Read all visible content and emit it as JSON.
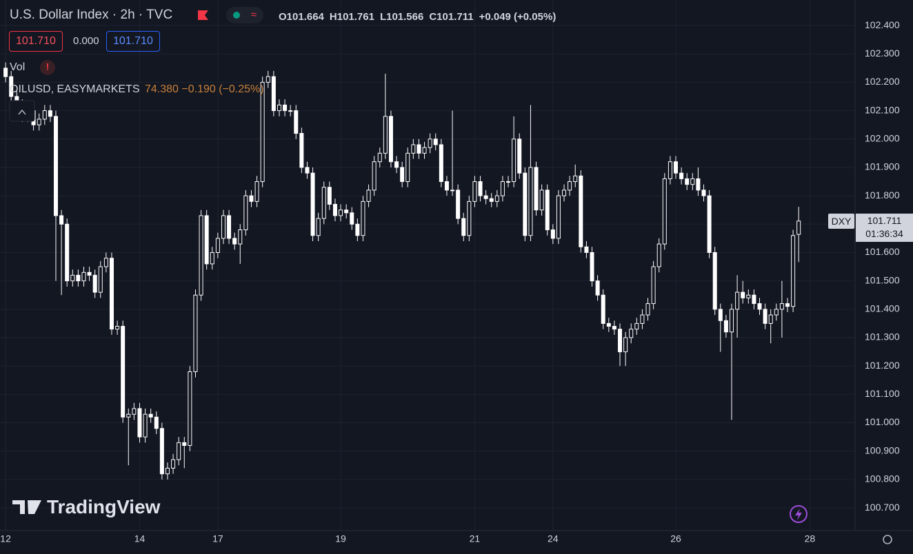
{
  "chart_data": {
    "type": "candlestick",
    "title": "U.S. Dollar Index · 2h · TVC",
    "ohlc_texts": [
      "O101.664",
      "H101.761",
      "L101.566",
      "C101.711",
      "+0.049 (+0.05%)"
    ],
    "boxes": [
      "101.710",
      "0.000",
      "101.710"
    ],
    "volume_label": "Vol",
    "overlay_symbol": "OILUSD, EASYMARKETS",
    "overlay_values": "74.380  −0.190 (−0.25%)",
    "price_tag": "DXY",
    "last_price": "101.711",
    "countdown": "01:36:34",
    "watermark": "TradingView",
    "color": "#ffffff",
    "grid": true,
    "ylim": [
      100.62,
      102.49
    ],
    "yticks": [
      {
        "value": 100.7,
        "label": "100.700"
      },
      {
        "value": 100.8,
        "label": "100.800"
      },
      {
        "value": 100.9,
        "label": "100.900"
      },
      {
        "value": 101.0,
        "label": "101.000"
      },
      {
        "value": 101.1,
        "label": "101.100"
      },
      {
        "value": 101.2,
        "label": "101.200"
      },
      {
        "value": 101.3,
        "label": "101.300"
      },
      {
        "value": 101.4,
        "label": "101.400"
      },
      {
        "value": 101.5,
        "label": "101.500"
      },
      {
        "value": 101.6,
        "label": "101.600"
      },
      {
        "value": 101.7,
        "label": "101.700"
      },
      {
        "value": 101.8,
        "label": "101.800"
      },
      {
        "value": 101.9,
        "label": "101.900"
      },
      {
        "value": 102.0,
        "label": "102.000"
      },
      {
        "value": 102.1,
        "label": "102.100"
      },
      {
        "value": 102.2,
        "label": "102.200"
      },
      {
        "value": 102.3,
        "label": "102.300"
      },
      {
        "value": 102.4,
        "label": "102.400"
      }
    ],
    "xlim": [
      -1,
      152.1
    ],
    "xticks": [
      {
        "value": 0,
        "label": "12"
      },
      {
        "value": 24,
        "label": "14"
      },
      {
        "value": 38,
        "label": "17"
      },
      {
        "value": 60,
        "label": "19"
      },
      {
        "value": 84,
        "label": "21"
      },
      {
        "value": 98,
        "label": "24"
      },
      {
        "value": 120,
        "label": "26"
      },
      {
        "value": 144,
        "label": "28"
      }
    ],
    "candles": [
      [
        102.25,
        102.27,
        102.2,
        102.22
      ],
      [
        102.22,
        102.24,
        102.13,
        102.15
      ],
      [
        102.15,
        102.17,
        102.1,
        102.12
      ],
      [
        102.12,
        102.14,
        102.06,
        102.08
      ],
      [
        102.08,
        102.12,
        102.06,
        102.1
      ],
      [
        102.1,
        102.12,
        102.03,
        102.05
      ],
      [
        102.05,
        102.09,
        102.03,
        102.07
      ],
      [
        102.07,
        102.12,
        102.05,
        102.1
      ],
      [
        102.1,
        102.12,
        102.06,
        102.08
      ],
      [
        102.08,
        102.1,
        101.5,
        101.73
      ],
      [
        101.73,
        101.75,
        101.45,
        101.7
      ],
      [
        101.7,
        101.72,
        101.48,
        101.5
      ],
      [
        101.5,
        101.54,
        101.48,
        101.52
      ],
      [
        101.52,
        101.54,
        101.48,
        101.5
      ],
      [
        101.5,
        101.55,
        101.48,
        101.53
      ],
      [
        101.53,
        101.55,
        101.5,
        101.52
      ],
      [
        101.52,
        101.54,
        101.44,
        101.46
      ],
      [
        101.46,
        101.57,
        101.44,
        101.55
      ],
      [
        101.55,
        101.6,
        101.53,
        101.58
      ],
      [
        101.58,
        101.6,
        101.31,
        101.33
      ],
      [
        101.33,
        101.36,
        101.31,
        101.34
      ],
      [
        101.34,
        101.36,
        101.0,
        101.02
      ],
      [
        101.02,
        101.05,
        100.85,
        101.03
      ],
      [
        101.03,
        101.07,
        101.01,
        101.05
      ],
      [
        101.05,
        101.07,
        100.93,
        100.95
      ],
      [
        100.95,
        101.05,
        100.93,
        101.03
      ],
      [
        101.03,
        101.05,
        101.0,
        101.02
      ],
      [
        101.02,
        101.04,
        100.96,
        100.98
      ],
      [
        100.98,
        101.0,
        100.8,
        100.82
      ],
      [
        100.82,
        100.86,
        100.8,
        100.84
      ],
      [
        100.84,
        100.89,
        100.82,
        100.87
      ],
      [
        100.87,
        100.95,
        100.85,
        100.93
      ],
      [
        100.93,
        100.95,
        100.84,
        100.92
      ],
      [
        100.92,
        101.2,
        100.9,
        101.18
      ],
      [
        101.18,
        101.47,
        101.16,
        101.45
      ],
      [
        101.45,
        101.75,
        101.43,
        101.73
      ],
      [
        101.73,
        101.75,
        101.54,
        101.56
      ],
      [
        101.56,
        101.62,
        101.54,
        101.6
      ],
      [
        101.6,
        101.67,
        101.58,
        101.65
      ],
      [
        101.65,
        101.75,
        101.63,
        101.73
      ],
      [
        101.73,
        101.75,
        101.63,
        101.65
      ],
      [
        101.65,
        101.67,
        101.61,
        101.63
      ],
      [
        101.63,
        101.7,
        101.56,
        101.68
      ],
      [
        101.68,
        101.82,
        101.66,
        101.8
      ],
      [
        101.8,
        101.82,
        101.76,
        101.78
      ],
      [
        101.78,
        101.87,
        101.76,
        101.85
      ],
      [
        101.85,
        102.22,
        101.83,
        102.2
      ],
      [
        102.2,
        102.24,
        102.18,
        102.22
      ],
      [
        102.22,
        102.24,
        102.08,
        102.1
      ],
      [
        102.1,
        102.14,
        102.08,
        102.12
      ],
      [
        102.12,
        102.14,
        102.08,
        102.1
      ],
      [
        102.1,
        102.12,
        102.08,
        102.1
      ],
      [
        102.1,
        102.12,
        102.0,
        102.02
      ],
      [
        102.02,
        102.04,
        101.88,
        101.9
      ],
      [
        101.9,
        101.92,
        101.86,
        101.88
      ],
      [
        101.88,
        101.9,
        101.64,
        101.66
      ],
      [
        101.66,
        101.74,
        101.64,
        101.72
      ],
      [
        101.72,
        101.85,
        101.7,
        101.83
      ],
      [
        101.83,
        101.85,
        101.75,
        101.77
      ],
      [
        101.77,
        101.79,
        101.71,
        101.73
      ],
      [
        101.73,
        101.77,
        101.71,
        101.75
      ],
      [
        101.75,
        101.77,
        101.72,
        101.74
      ],
      [
        101.74,
        101.76,
        101.68,
        101.7
      ],
      [
        101.7,
        101.72,
        101.64,
        101.66
      ],
      [
        101.66,
        101.8,
        101.64,
        101.78
      ],
      [
        101.78,
        101.84,
        101.76,
        101.82
      ],
      [
        101.82,
        101.94,
        101.8,
        101.92
      ],
      [
        101.92,
        101.97,
        101.9,
        101.95
      ],
      [
        101.95,
        102.23,
        101.93,
        102.08
      ],
      [
        102.08,
        102.1,
        101.9,
        101.92
      ],
      [
        101.92,
        101.94,
        101.88,
        101.9
      ],
      [
        101.9,
        101.92,
        101.83,
        101.85
      ],
      [
        101.85,
        101.97,
        101.83,
        101.95
      ],
      [
        101.95,
        102.0,
        101.93,
        101.98
      ],
      [
        101.98,
        102.0,
        101.93,
        101.95
      ],
      [
        101.95,
        101.99,
        101.93,
        101.97
      ],
      [
        101.97,
        102.02,
        101.95,
        102.0
      ],
      [
        102.0,
        102.02,
        101.96,
        101.98
      ],
      [
        101.98,
        102.0,
        101.83,
        101.85
      ],
      [
        101.85,
        101.87,
        101.8,
        101.82
      ],
      [
        101.82,
        102.1,
        101.8,
        101.82
      ],
      [
        101.82,
        101.84,
        101.7,
        101.72
      ],
      [
        101.72,
        101.74,
        101.64,
        101.66
      ],
      [
        101.66,
        101.8,
        101.64,
        101.78
      ],
      [
        101.78,
        101.87,
        101.76,
        101.85
      ],
      [
        101.85,
        101.87,
        101.78,
        101.8
      ],
      [
        101.8,
        101.82,
        101.77,
        101.79
      ],
      [
        101.79,
        101.81,
        101.76,
        101.78
      ],
      [
        101.78,
        101.82,
        101.76,
        101.8
      ],
      [
        101.8,
        101.87,
        101.78,
        101.85
      ],
      [
        101.85,
        101.87,
        101.83,
        101.85
      ],
      [
        101.85,
        102.08,
        101.83,
        102.0
      ],
      [
        102.0,
        102.02,
        101.86,
        101.88
      ],
      [
        101.88,
        101.9,
        101.64,
        101.66
      ],
      [
        101.66,
        102.12,
        101.64,
        101.9
      ],
      [
        101.9,
        101.92,
        101.73,
        101.75
      ],
      [
        101.75,
        101.84,
        101.73,
        101.82
      ],
      [
        101.82,
        101.84,
        101.66,
        101.68
      ],
      [
        101.68,
        101.7,
        101.63,
        101.65
      ],
      [
        101.65,
        101.82,
        101.63,
        101.8
      ],
      [
        101.8,
        101.84,
        101.78,
        101.82
      ],
      [
        101.82,
        101.87,
        101.8,
        101.85
      ],
      [
        101.85,
        101.91,
        101.83,
        101.87
      ],
      [
        101.87,
        101.89,
        101.6,
        101.62
      ],
      [
        101.62,
        101.64,
        101.58,
        101.6
      ],
      [
        101.6,
        101.62,
        101.48,
        101.5
      ],
      [
        101.5,
        101.52,
        101.43,
        101.45
      ],
      [
        101.45,
        101.47,
        101.33,
        101.35
      ],
      [
        101.35,
        101.37,
        101.32,
        101.34
      ],
      [
        101.34,
        101.36,
        101.31,
        101.33
      ],
      [
        101.33,
        101.35,
        101.2,
        101.25
      ],
      [
        101.25,
        101.32,
        101.2,
        101.3
      ],
      [
        101.3,
        101.35,
        101.28,
        101.33
      ],
      [
        101.33,
        101.37,
        101.31,
        101.35
      ],
      [
        101.35,
        101.4,
        101.33,
        101.38
      ],
      [
        101.38,
        101.44,
        101.36,
        101.42
      ],
      [
        101.42,
        101.57,
        101.4,
        101.55
      ],
      [
        101.55,
        101.65,
        101.53,
        101.63
      ],
      [
        101.63,
        101.88,
        101.61,
        101.86
      ],
      [
        101.86,
        101.94,
        101.84,
        101.92
      ],
      [
        101.92,
        101.94,
        101.86,
        101.88
      ],
      [
        101.88,
        101.9,
        101.84,
        101.86
      ],
      [
        101.86,
        101.88,
        101.82,
        101.84
      ],
      [
        101.84,
        101.88,
        101.82,
        101.86
      ],
      [
        101.86,
        101.9,
        101.8,
        101.82
      ],
      [
        101.82,
        101.84,
        101.78,
        101.8
      ],
      [
        101.8,
        101.82,
        101.58,
        101.6
      ],
      [
        101.6,
        101.62,
        101.38,
        101.4
      ],
      [
        101.4,
        101.42,
        101.25,
        101.36
      ],
      [
        101.36,
        101.38,
        101.3,
        101.32
      ],
      [
        101.32,
        101.42,
        101.01,
        101.4
      ],
      [
        101.4,
        101.52,
        101.3,
        101.46
      ],
      [
        101.46,
        101.5,
        101.42,
        101.44
      ],
      [
        101.44,
        101.47,
        101.42,
        101.45
      ],
      [
        101.45,
        101.47,
        101.4,
        101.42
      ],
      [
        101.42,
        101.44,
        101.38,
        101.4
      ],
      [
        101.4,
        101.42,
        101.33,
        101.35
      ],
      [
        101.35,
        101.4,
        101.28,
        101.38
      ],
      [
        101.38,
        101.42,
        101.36,
        101.4
      ],
      [
        101.4,
        101.5,
        101.3,
        101.42
      ],
      [
        101.42,
        101.44,
        101.39,
        101.41
      ],
      [
        101.41,
        101.68,
        101.39,
        101.66
      ],
      [
        101.664,
        101.761,
        101.566,
        101.711
      ]
    ]
  }
}
